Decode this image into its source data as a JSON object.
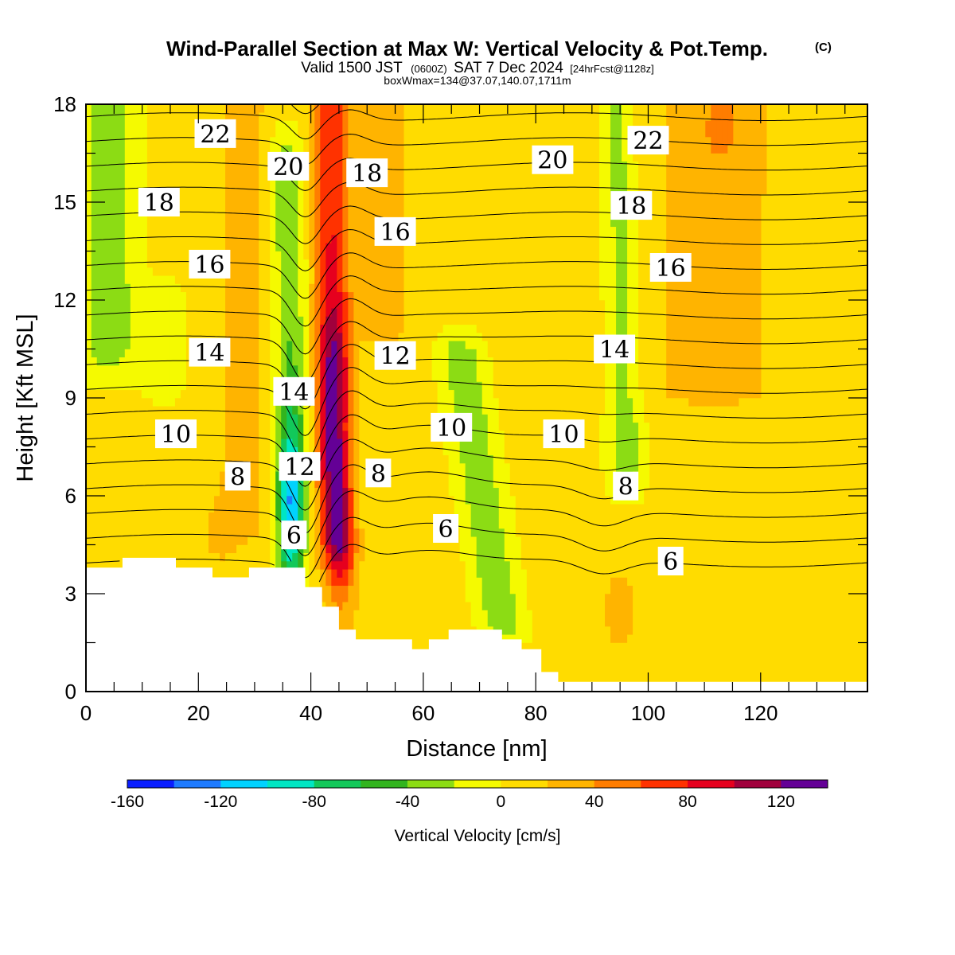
{
  "chart_data": {
    "type": "filled-contour",
    "title": "Wind-Parallel Section at Max W: Vertical Velocity & Pot.Temp.",
    "title_mark": "(C)",
    "subtitle": {
      "valid": "Valid 1500 JST",
      "zulu": "(0600Z)",
      "date": "SAT 7 Dec 2024",
      "forecast": "[24hrFcst@1128z]"
    },
    "box_info": "boxWmax=134@37.07,140.07,1711m",
    "xlabel": "Distance [nm]",
    "ylabel": "Height [Kft MSL]",
    "xlim": [
      0,
      139
    ],
    "ylim": [
      0,
      18
    ],
    "x_ticks": [
      0,
      20,
      40,
      60,
      80,
      100,
      120
    ],
    "y_ticks": [
      0,
      3,
      6,
      9,
      12,
      15,
      18
    ],
    "colorbar": {
      "title": "Vertical Velocity [cm/s]",
      "levels": [
        -160,
        -140,
        -120,
        -100,
        -80,
        -60,
        -40,
        -20,
        0,
        20,
        40,
        60,
        80,
        100,
        120,
        140
      ],
      "tick_labels": [
        -160,
        -120,
        -80,
        -40,
        0,
        40,
        80,
        120
      ],
      "colors": [
        "#0a1eff",
        "#1e7bff",
        "#00d2ff",
        "#00e6c3",
        "#12c85a",
        "#32b41e",
        "#8cdc14",
        "#f5fa00",
        "#ffdc00",
        "#ffb400",
        "#ff7d00",
        "#ff3200",
        "#e6001e",
        "#a0003c",
        "#640096"
      ]
    },
    "terrain": [
      [
        0,
        3.8
      ],
      [
        6.5,
        3.8
      ],
      [
        6.5,
        4.1
      ],
      [
        16,
        4.1
      ],
      [
        16,
        3.8
      ],
      [
        22.5,
        3.8
      ],
      [
        22.5,
        3.5
      ],
      [
        29,
        3.5
      ],
      [
        29,
        3.8
      ],
      [
        39,
        3.8
      ],
      [
        39,
        3.2
      ],
      [
        42,
        3.2
      ],
      [
        42,
        2.6
      ],
      [
        45,
        2.6
      ],
      [
        45,
        1.9
      ],
      [
        48,
        1.9
      ],
      [
        48,
        1.6
      ],
      [
        58,
        1.6
      ],
      [
        58,
        1.3
      ],
      [
        61,
        1.3
      ],
      [
        61,
        1.6
      ],
      [
        64.5,
        1.6
      ],
      [
        64.5,
        1.9
      ],
      [
        74,
        1.9
      ],
      [
        74,
        1.6
      ],
      [
        77.5,
        1.6
      ],
      [
        77.5,
        1.3
      ],
      [
        81,
        1.3
      ],
      [
        81,
        0.6
      ],
      [
        84,
        0.6
      ],
      [
        84,
        0.3
      ],
      [
        139,
        0.3
      ]
    ],
    "theta_contours": [
      {
        "level": 6,
        "labels": [
          [
            37,
            4.8
          ],
          [
            64,
            5.0
          ],
          [
            104,
            4.0
          ]
        ]
      },
      {
        "level": 8,
        "labels": [
          [
            27,
            6.6
          ],
          [
            52,
            6.7
          ],
          [
            96,
            6.3
          ]
        ]
      },
      {
        "level": 10,
        "labels": [
          [
            16,
            7.9
          ],
          [
            65,
            8.1
          ],
          [
            85,
            7.9
          ]
        ]
      },
      {
        "level": 12,
        "labels": [
          [
            38,
            6.9
          ],
          [
            55,
            10.3
          ]
        ]
      },
      {
        "level": 14,
        "labels": [
          [
            22,
            10.4
          ],
          [
            37,
            9.2
          ],
          [
            94,
            10.5
          ]
        ]
      },
      {
        "level": 16,
        "labels": [
          [
            22,
            13.1
          ],
          [
            55,
            14.1
          ],
          [
            104,
            13.0
          ]
        ]
      },
      {
        "level": 18,
        "labels": [
          [
            13,
            15.0
          ],
          [
            50,
            15.9
          ],
          [
            97,
            14.9
          ]
        ]
      },
      {
        "level": 20,
        "labels": [
          [
            36,
            16.1
          ],
          [
            83,
            16.3
          ]
        ]
      },
      {
        "level": 22,
        "labels": [
          [
            23,
            17.1
          ],
          [
            100,
            16.9
          ]
        ]
      }
    ],
    "w_features": [
      {
        "name": "updraft",
        "w_max": 134,
        "x_range": [
          40,
          49
        ],
        "z_range": [
          2.8,
          18
        ]
      },
      {
        "name": "downdraft",
        "w_min": -130,
        "x_range": [
          32,
          40
        ],
        "z_range": [
          3.2,
          18
        ]
      },
      {
        "name": "downdraft",
        "w_min": -40,
        "x_range": [
          65,
          80
        ],
        "z_range": [
          1.5,
          11.8
        ]
      },
      {
        "name": "downdraft",
        "w_min": -40,
        "x_range": [
          90,
          98
        ],
        "z_range": [
          5.8,
          18
        ]
      },
      {
        "name": "downdraft",
        "w_min": -40,
        "x_range": [
          0,
          10
        ],
        "z_range": [
          9,
          18
        ]
      }
    ]
  }
}
